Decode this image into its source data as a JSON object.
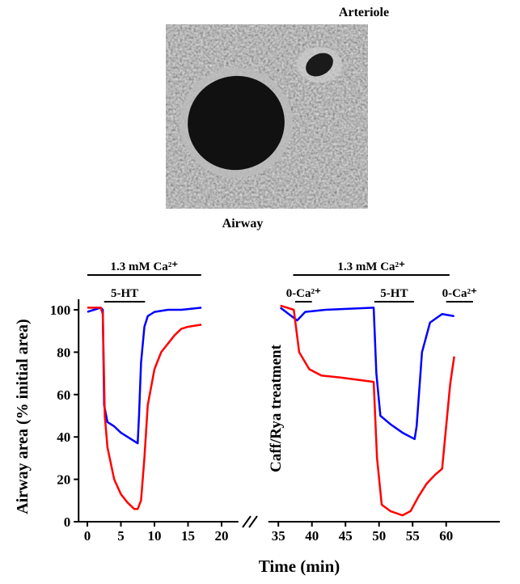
{
  "image_labels": {
    "top": "Arteriole",
    "bottom": "Airway"
  },
  "chart_data": {
    "type": "line",
    "xlabel": "Time (min)",
    "ylabel": "Airway area (% initial area)",
    "side_label": "Caff/Rya treatment",
    "xlim": [
      -1.3,
      68
    ],
    "xbreak": [
      22.5,
      33.5
    ],
    "ylim": [
      0,
      105
    ],
    "xticks": [
      0,
      5,
      10,
      15,
      20,
      35,
      40,
      45,
      50,
      55,
      60
    ],
    "yticks": [
      0,
      20,
      40,
      60,
      80,
      100
    ],
    "annotations": [
      {
        "text": "1.3 mM Ca²⁺",
        "x": [
          0,
          23.5
        ],
        "row": 1
      },
      {
        "text": "5-HT",
        "x": [
          2.5,
          8.6
        ],
        "row": 2
      },
      {
        "text": "1.3 mM Ca²⁺",
        "x": [
          37.2,
          60.5
        ],
        "row": 1
      },
      {
        "text": "0-Ca²⁺",
        "x": [
          37.5,
          40
        ],
        "row": 2
      },
      {
        "text": "5-HT",
        "x": [
          49.3,
          55.2
        ],
        "row": 2
      },
      {
        "text": "0-Ca²⁺",
        "x": [
          60,
          64
        ],
        "row": 2
      }
    ],
    "series": [
      {
        "color": "#0000ff",
        "x": [
          0,
          1,
          2,
          2.3,
          2.5,
          3,
          4,
          5,
          6,
          7,
          7.5,
          7.7,
          8,
          8.5,
          9,
          10,
          12,
          14,
          17
        ],
        "values": [
          99,
          100,
          101,
          100,
          55,
          47,
          45,
          42,
          40,
          38,
          37,
          50,
          75,
          92,
          97,
          99,
          100,
          100,
          101
        ]
      },
      {
        "color": "#ff0000",
        "x": [
          0,
          2,
          2.3,
          2.6,
          3,
          4,
          5,
          6,
          7,
          7.5,
          8,
          8.5,
          9,
          10,
          11,
          12,
          13,
          14,
          15,
          17
        ],
        "values": [
          101,
          101,
          98,
          50,
          35,
          20,
          13,
          9,
          6,
          6,
          10,
          30,
          55,
          72,
          80,
          84,
          88,
          91,
          92,
          93
        ]
      },
      {
        "color": "#0000ff",
        "x": [
          35.3,
          37.8,
          39,
          42,
          49.2,
          49.6,
          50.2,
          51.7,
          53.5,
          55.3,
          55.6,
          56.4,
          57.6,
          59.4,
          61.2
        ],
        "values": [
          101,
          95,
          99,
          100,
          101,
          70,
          50,
          46,
          42,
          39,
          45,
          80,
          94,
          98,
          97
        ]
      },
      {
        "color": "#ff0000",
        "x": [
          35.3,
          37.3,
          38.1,
          39.6,
          41.4,
          44.4,
          46.8,
          49.2,
          49.7,
          50.4,
          51.7,
          53.5,
          54.7,
          55.9,
          57.1,
          58.3,
          59.4,
          60,
          60.6,
          61.2
        ],
        "values": [
          102,
          100,
          80,
          72,
          69,
          68,
          67,
          66,
          30,
          8,
          5,
          3,
          5,
          12,
          18,
          22,
          25,
          45,
          65,
          78
        ]
      }
    ]
  }
}
